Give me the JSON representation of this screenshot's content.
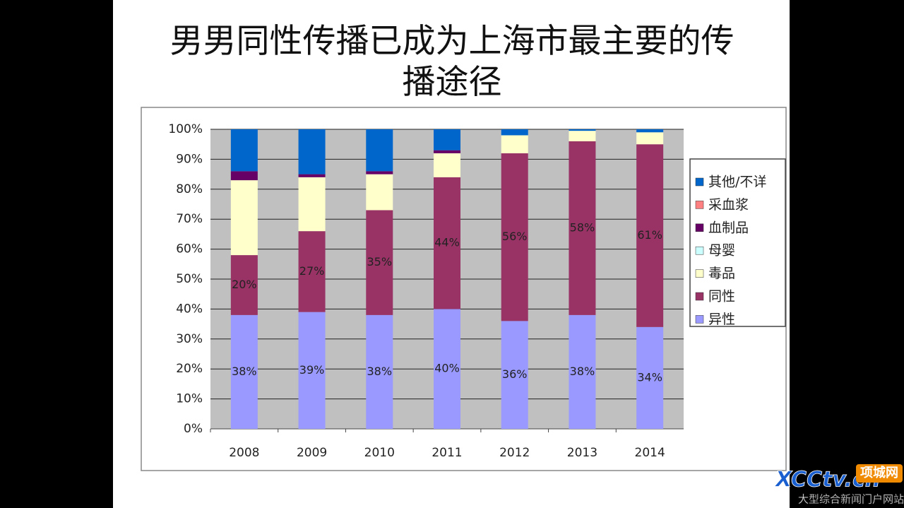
{
  "chart_data": {
    "type": "stacked_bar",
    "title": "男男同性传播已成为上海市最主要的传播途径",
    "categories": [
      "2008",
      "2009",
      "2010",
      "2011",
      "2012",
      "2013",
      "2014"
    ],
    "series": [
      {
        "name": "异性",
        "color": "#9999ff",
        "values": [
          38,
          39,
          38,
          40,
          36,
          38,
          34
        ],
        "value_labels": [
          "38%",
          "39%",
          "38%",
          "40%",
          "36%",
          "38%",
          "34%"
        ]
      },
      {
        "name": "同性",
        "color": "#993366",
        "values": [
          20,
          27,
          35,
          44,
          56,
          58,
          61
        ],
        "value_labels": [
          "20%",
          "27%",
          "35%",
          "44%",
          "56%",
          "58%",
          "61%"
        ]
      },
      {
        "name": "毒品",
        "color": "#ffffcc",
        "values": [
          25,
          18,
          12,
          8,
          6,
          3.5,
          4
        ]
      },
      {
        "name": "母婴",
        "color": "#ccffff",
        "values": [
          0,
          0,
          0,
          0,
          0,
          0,
          0
        ]
      },
      {
        "name": "血制品",
        "color": "#660066",
        "values": [
          3,
          1,
          1,
          1,
          0,
          0,
          0
        ]
      },
      {
        "name": "采血浆",
        "color": "#ff8080",
        "values": [
          0,
          0,
          0,
          0,
          0,
          0,
          0
        ]
      },
      {
        "name": "其他/不详",
        "color": "#0066cc",
        "values": [
          14,
          15,
          14,
          7,
          2,
          0.5,
          1
        ]
      }
    ],
    "ylim": [
      0,
      100
    ],
    "yticks": [
      {
        "value": 0,
        "label": "0%"
      },
      {
        "value": 10,
        "label": "10%"
      },
      {
        "value": 20,
        "label": "20%"
      },
      {
        "value": 30,
        "label": "30%"
      },
      {
        "value": 40,
        "label": "40%"
      },
      {
        "value": 50,
        "label": "50%"
      },
      {
        "value": 60,
        "label": "60%"
      },
      {
        "value": 70,
        "label": "70%"
      },
      {
        "value": 80,
        "label": "80%"
      },
      {
        "value": 90,
        "label": "90%"
      },
      {
        "value": 100,
        "label": "100%"
      }
    ],
    "grid": true,
    "legend": "right"
  },
  "watermark": {
    "logo": "XCCtv.cn",
    "site": "项城网",
    "slogan": "大型综合新闻门户网站"
  }
}
